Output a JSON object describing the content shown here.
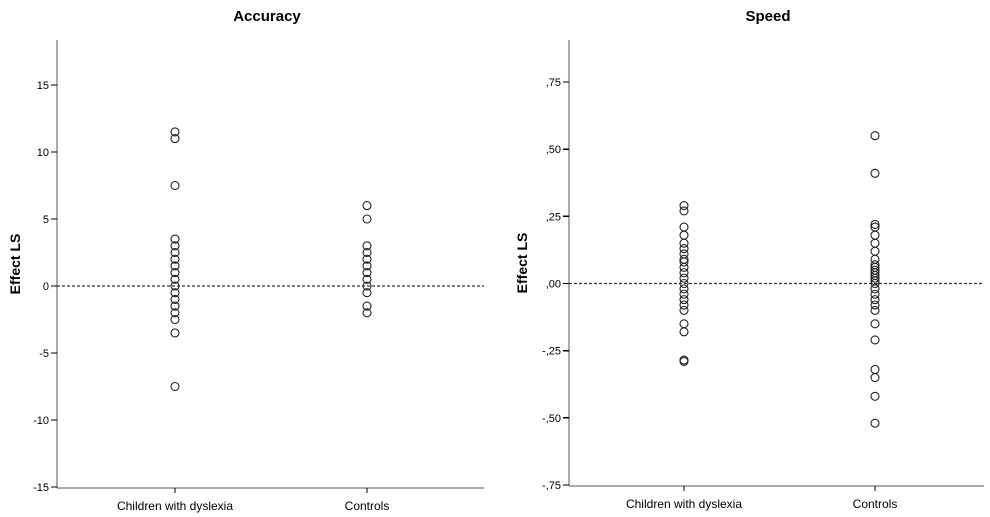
{
  "chart_data": [
    {
      "type": "scatter",
      "title": "Accuracy",
      "ylabel": "Effect LS",
      "xlabel": "",
      "categories": [
        "Children with dyslexia",
        "Controls"
      ],
      "ylim": [
        -15,
        18
      ],
      "yticks": [
        15,
        10,
        5,
        0,
        -5,
        -10,
        -15
      ],
      "ytick_labels": [
        "15",
        "10",
        "5",
        "0",
        "-5",
        "-10",
        "-15"
      ],
      "reference_line": 0,
      "series": [
        {
          "category": "Children with dyslexia",
          "values": [
            11.5,
            11.0,
            7.5,
            3.5,
            3.0,
            2.5,
            2.0,
            1.5,
            1.0,
            0.5,
            0,
            -0.5,
            -1.0,
            -1.5,
            -2.0,
            -2.5,
            -3.5,
            -7.5
          ]
        },
        {
          "category": "Controls",
          "values": [
            6.0,
            5.0,
            3.0,
            2.5,
            2.0,
            1.5,
            1.0,
            0.5,
            0,
            -0.5,
            -1.5,
            -2.0
          ]
        }
      ],
      "grid": false
    },
    {
      "type": "scatter",
      "title": "Speed",
      "ylabel": "Effect LS",
      "xlabel": "",
      "categories": [
        "Children with dyslexia",
        "Controls"
      ],
      "ylim": [
        -0.75,
        0.9
      ],
      "yticks": [
        0.75,
        0.5,
        0.25,
        0,
        -0.25,
        -0.5,
        -0.75
      ],
      "ytick_labels": [
        ",75",
        ",50",
        ",25",
        ",00",
        "-,25",
        "-,50",
        "-,75"
      ],
      "reference_line": 0,
      "series": [
        {
          "category": "Children with dyslexia",
          "values": [
            0.29,
            0.27,
            0.21,
            0.18,
            0.15,
            0.13,
            0.11,
            0.09,
            0.08,
            0.06,
            0.04,
            0.02,
            0.0,
            -0.02,
            -0.04,
            -0.06,
            -0.08,
            -0.1,
            -0.15,
            -0.18,
            -0.285,
            -0.29
          ]
        },
        {
          "category": "Controls",
          "values": [
            0.55,
            0.41,
            0.22,
            0.21,
            0.18,
            0.15,
            0.12,
            0.09,
            0.07,
            0.06,
            0.05,
            0.04,
            0.03,
            0.02,
            0.01,
            0.0,
            -0.02,
            -0.04,
            -0.06,
            -0.08,
            -0.1,
            -0.15,
            -0.21,
            -0.32,
            -0.35,
            -0.42,
            -0.52
          ]
        }
      ],
      "grid": false
    }
  ]
}
